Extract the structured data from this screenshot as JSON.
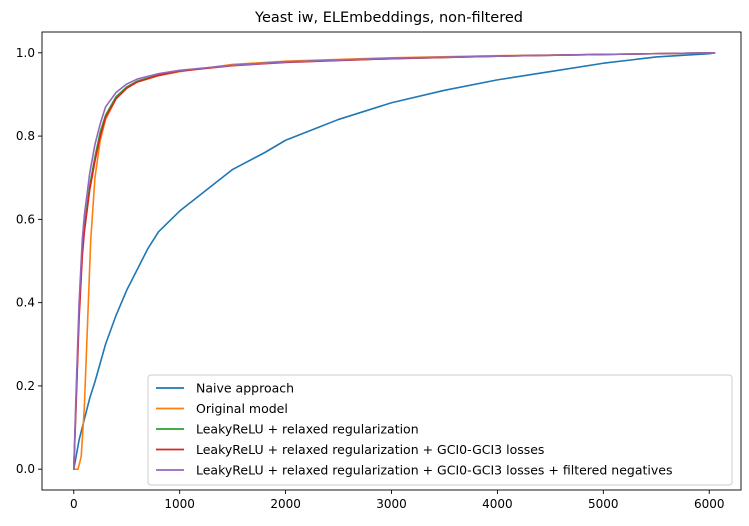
{
  "chart_data": {
    "type": "line",
    "title": "Yeast iw, ELEmbeddings, non-filtered",
    "xlabel": "",
    "ylabel": "",
    "xlim": [
      -300,
      6300
    ],
    "ylim": [
      -0.05,
      1.05
    ],
    "xticks": [
      0,
      1000,
      2000,
      3000,
      4000,
      5000,
      6000
    ],
    "yticks": [
      0.0,
      0.2,
      0.4,
      0.6,
      0.8,
      1.0
    ],
    "xtick_labels": [
      "0",
      "1000",
      "2000",
      "3000",
      "4000",
      "5000",
      "6000"
    ],
    "ytick_labels": [
      "0.0",
      "0.2",
      "0.4",
      "0.6",
      "0.8",
      "1.0"
    ],
    "grid": false,
    "legend_position": "lower-right",
    "series": [
      {
        "name": "Naive approach",
        "color": "#1f77b4",
        "x": [
          0,
          50,
          100,
          150,
          200,
          300,
          400,
          500,
          600,
          700,
          800,
          1000,
          1200,
          1500,
          1800,
          2000,
          2500,
          3000,
          3500,
          4000,
          4500,
          5000,
          5500,
          6000,
          6050
        ],
        "y": [
          0.0,
          0.07,
          0.12,
          0.17,
          0.21,
          0.3,
          0.37,
          0.43,
          0.48,
          0.53,
          0.57,
          0.62,
          0.66,
          0.72,
          0.76,
          0.79,
          0.84,
          0.88,
          0.91,
          0.935,
          0.955,
          0.975,
          0.99,
          0.998,
          1.0
        ]
      },
      {
        "name": "Original model",
        "color": "#ff7f0e",
        "x": [
          0,
          40,
          70,
          100,
          130,
          160,
          200,
          250,
          300,
          400,
          500,
          600,
          800,
          1000,
          1500,
          2000,
          3000,
          4000,
          5000,
          6050
        ],
        "y": [
          0.0,
          0.0,
          0.03,
          0.15,
          0.35,
          0.55,
          0.7,
          0.79,
          0.84,
          0.89,
          0.915,
          0.93,
          0.945,
          0.955,
          0.972,
          0.98,
          0.988,
          0.993,
          0.996,
          1.0
        ]
      },
      {
        "name": "LeakyReLU + relaxed regularization",
        "color": "#2ca02c",
        "x": [
          0,
          20,
          50,
          80,
          100,
          150,
          200,
          250,
          300,
          400,
          500,
          600,
          800,
          1000,
          1500,
          2000,
          3000,
          4000,
          5000,
          6050
        ],
        "y": [
          0.0,
          0.15,
          0.38,
          0.52,
          0.58,
          0.68,
          0.75,
          0.81,
          0.85,
          0.895,
          0.918,
          0.932,
          0.947,
          0.957,
          0.97,
          0.978,
          0.986,
          0.992,
          0.996,
          1.0
        ]
      },
      {
        "name": "LeakyReLU + relaxed regularization + GCI0-GCI3 losses",
        "color": "#d62728",
        "x": [
          0,
          20,
          50,
          80,
          100,
          150,
          200,
          250,
          300,
          400,
          500,
          600,
          800,
          1000,
          1500,
          2000,
          3000,
          4000,
          5000,
          6050
        ],
        "y": [
          0.0,
          0.14,
          0.36,
          0.51,
          0.57,
          0.67,
          0.74,
          0.8,
          0.845,
          0.89,
          0.915,
          0.93,
          0.946,
          0.956,
          0.969,
          0.977,
          0.986,
          0.992,
          0.996,
          1.0
        ]
      },
      {
        "name": "LeakyReLU + relaxed regularization + GCI0-GCI3 losses + filtered negatives",
        "color": "#9467bd",
        "x": [
          0,
          20,
          50,
          80,
          100,
          150,
          200,
          250,
          300,
          400,
          500,
          600,
          800,
          1000,
          1500,
          2000,
          3000,
          4000,
          5000,
          6050
        ],
        "y": [
          0.0,
          0.17,
          0.4,
          0.55,
          0.61,
          0.71,
          0.78,
          0.83,
          0.87,
          0.905,
          0.925,
          0.937,
          0.95,
          0.958,
          0.97,
          0.978,
          0.987,
          0.992,
          0.996,
          1.0
        ]
      }
    ]
  }
}
